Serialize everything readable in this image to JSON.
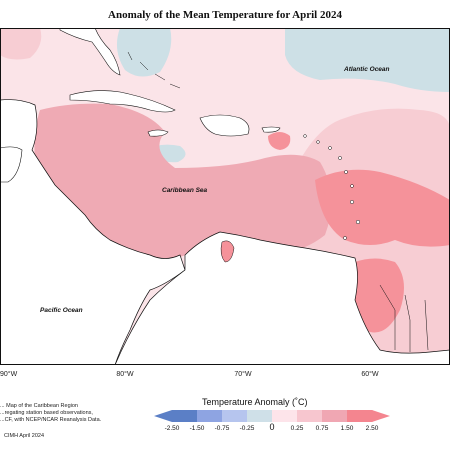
{
  "title": "Anomaly of the Mean Temperature for April 2024",
  "map_labels": {
    "atlantic": "Atlantic Ocean",
    "caribbean": "Caribbean Sea",
    "pacific": "Pacific Ocean"
  },
  "longitude_ticks": [
    "90°W",
    "80°W",
    "70°W",
    "60°W"
  ],
  "footer": {
    "line1": "... Map of the Caribbean Region",
    "line2": "...regating station based observations,",
    "line3": "...CF, with NCEP/NCAR Reanalysis Data.",
    "credit": "CIMH April 2024"
  },
  "legend": {
    "title": "Temperature Anomaly (˚C)",
    "labels": [
      "-2.50",
      "-1.50",
      "-0.75",
      "-0.25",
      "0",
      "0.25",
      "0.75",
      "1.50",
      "2.50"
    ],
    "colors": [
      "#5b7fc6",
      "#8ea4e2",
      "#b6c5ee",
      "#cfe0e8",
      "#fde4ea",
      "#f7c6cf",
      "#f0a7b3",
      "#f4858f"
    ]
  },
  "colors": {
    "land": "#ffffff",
    "outline": "#111111",
    "light_pink": "#fbe4e8",
    "pale_pink": "#f7cdd3",
    "pink": "#efaab4",
    "salmon": "#f5929a",
    "light_blue": "#cde0e6"
  }
}
